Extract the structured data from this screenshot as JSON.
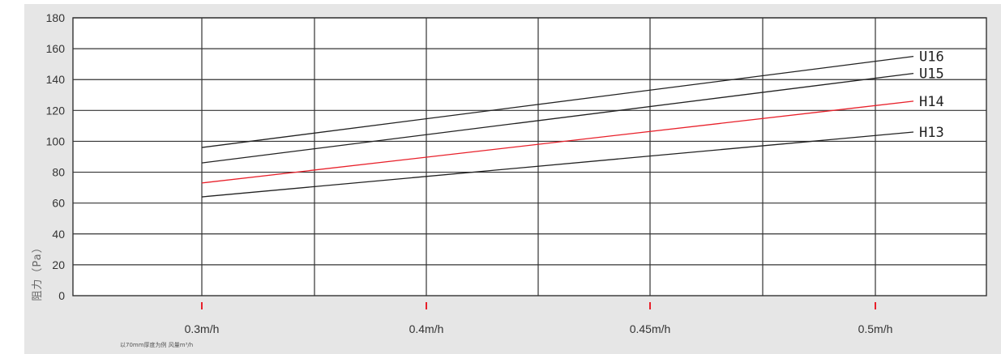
{
  "chart_data": {
    "type": "line",
    "xlabel": "",
    "ylabel": "阻力（Pa）",
    "ylim": [
      0,
      180
    ],
    "yticks": [
      180,
      160,
      140,
      120,
      100,
      80,
      60,
      40,
      20,
      0
    ],
    "categories": [
      "0.3m/h",
      "0.4m/h",
      "0.45m/h",
      "0.5m/h"
    ],
    "grid": true,
    "series": [
      {
        "name": "U16",
        "color": "#222222",
        "start": 96,
        "end": 155
      },
      {
        "name": "U15",
        "color": "#222222",
        "start": 86,
        "end": 144
      },
      {
        "name": "H14",
        "color": "#e8202a",
        "start": 73,
        "end": 126
      },
      {
        "name": "H13",
        "color": "#222222",
        "start": 64,
        "end": 106
      }
    ],
    "footnote": "以70mm厚度为例    风量m³/h",
    "colors": {
      "background": "#e6e6e6",
      "plot": "#ffffff",
      "grid": "#333333",
      "tick_marker": "#e8202a"
    }
  }
}
